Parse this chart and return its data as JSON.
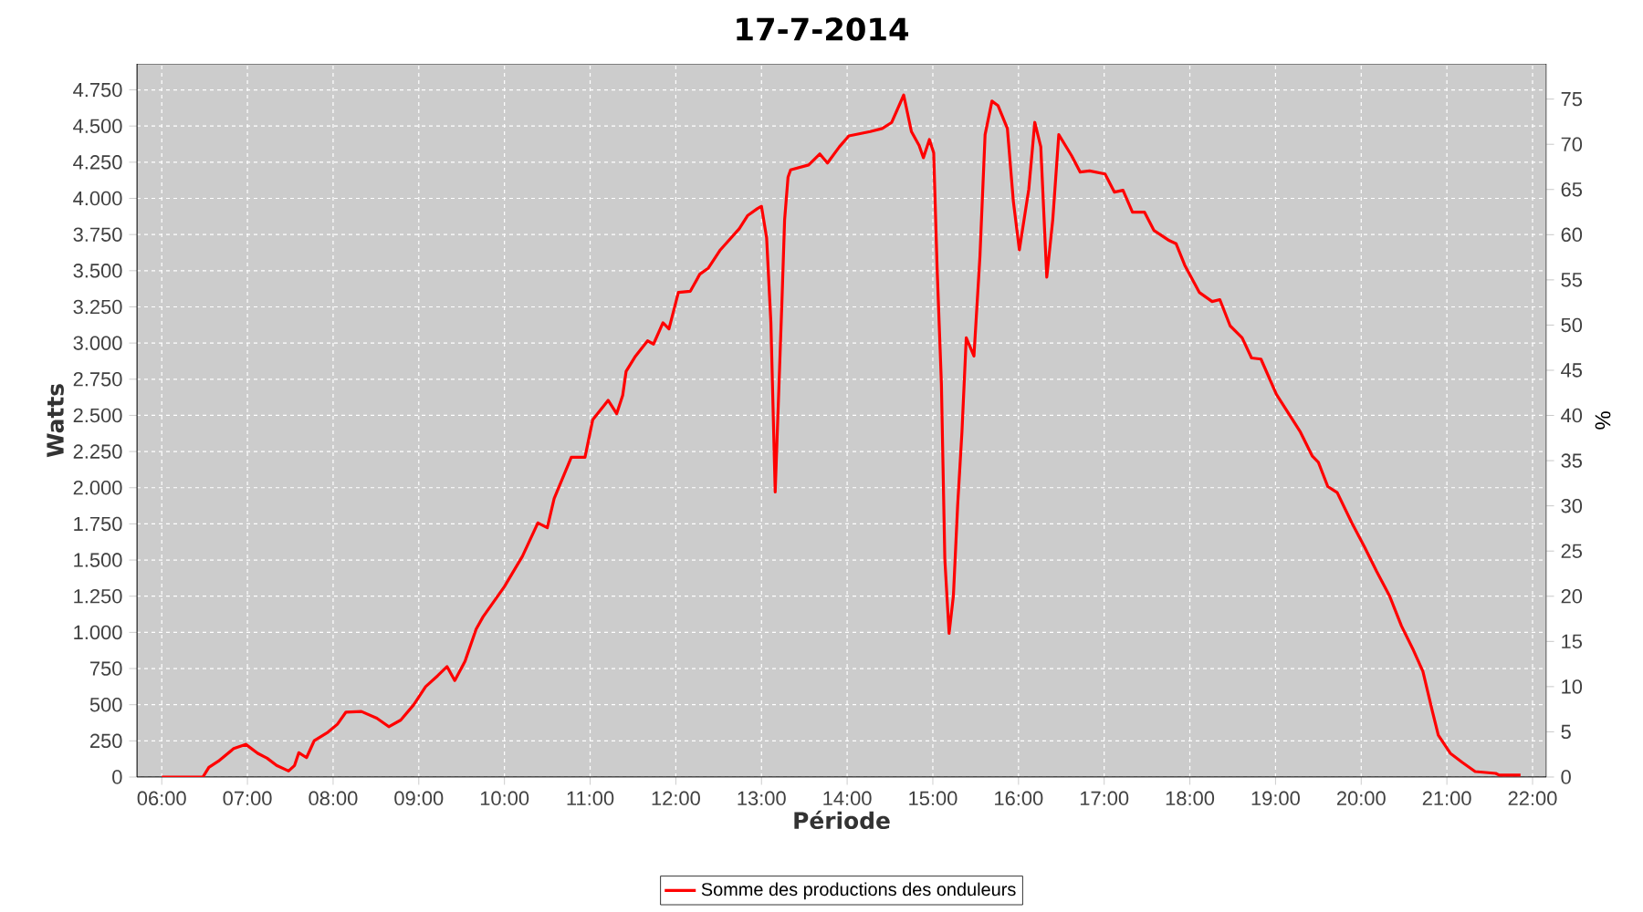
{
  "chart_data": {
    "type": "line",
    "title": "17-7-2014",
    "xlabel": "Période",
    "ylabel": "Watts",
    "y2label": "%",
    "x": [
      6.0,
      6.48,
      6.55,
      6.66,
      6.84,
      6.98,
      7.12,
      7.23,
      7.34,
      7.48,
      7.55,
      7.6,
      7.69,
      7.78,
      7.94,
      8.05,
      8.15,
      8.33,
      8.51,
      8.65,
      8.79,
      8.94,
      9.08,
      9.22,
      9.33,
      9.42,
      9.54,
      9.67,
      9.75,
      10.0,
      10.21,
      10.39,
      10.5,
      10.58,
      10.78,
      10.94,
      11.03,
      11.21,
      11.31,
      11.38,
      11.42,
      11.53,
      11.67,
      11.74,
      11.85,
      11.92,
      12.03,
      12.17,
      12.28,
      12.38,
      12.52,
      12.74,
      12.84,
      12.95,
      13.0,
      13.06,
      13.11,
      13.16,
      13.24,
      13.27,
      13.31,
      13.34,
      13.55,
      13.68,
      13.77,
      13.91,
      14.02,
      14.27,
      14.41,
      14.52,
      14.66,
      14.75,
      14.84,
      14.89,
      14.96,
      15.01,
      15.05,
      15.1,
      15.14,
      15.19,
      15.24,
      15.29,
      15.34,
      15.39,
      15.48,
      15.55,
      15.61,
      15.69,
      15.76,
      15.87,
      15.94,
      16.01,
      16.12,
      16.19,
      16.26,
      16.33,
      16.4,
      16.47,
      16.62,
      16.72,
      16.83,
      17.01,
      17.12,
      17.22,
      17.33,
      17.47,
      17.58,
      17.76,
      17.84,
      17.94,
      18.11,
      18.26,
      18.35,
      18.47,
      18.61,
      18.72,
      18.83,
      19.01,
      19.19,
      19.29,
      19.43,
      19.5,
      19.61,
      19.72,
      19.89,
      20.04,
      20.18,
      20.33,
      20.47,
      20.61,
      20.72,
      20.83,
      20.9,
      21.04,
      21.18,
      21.33,
      21.57,
      21.61,
      21.86
    ],
    "series": [
      {
        "name": "Somme des productions des onduleurs",
        "color": "#ff0000",
        "values": [
          0,
          0,
          67,
          109,
          197,
          226,
          164,
          130,
          80,
          42,
          80,
          168,
          134,
          252,
          310,
          365,
          449,
          453,
          407,
          348,
          394,
          499,
          625,
          700,
          763,
          667,
          801,
          1023,
          1107,
          1317,
          1526,
          1757,
          1723,
          1925,
          2210,
          2210,
          2469,
          2604,
          2512,
          2638,
          2805,
          2910,
          3015,
          2993,
          3140,
          3098,
          3350,
          3358,
          3476,
          3518,
          3644,
          3790,
          3882,
          3928,
          3945,
          3727,
          3140,
          1970,
          3308,
          3853,
          4147,
          4197,
          4231,
          4307,
          4244,
          4357,
          4432,
          4462,
          4483,
          4525,
          4714,
          4462,
          4366,
          4281,
          4407,
          4316,
          3517,
          2720,
          1505,
          993,
          1253,
          1881,
          2386,
          3036,
          2910,
          3601,
          4441,
          4672,
          4642,
          4483,
          3979,
          3644,
          4063,
          4525,
          4357,
          3455,
          3853,
          4441,
          4295,
          4182,
          4190,
          4169,
          4043,
          4056,
          3905,
          3905,
          3779,
          3708,
          3686,
          3539,
          3350,
          3287,
          3300,
          3119,
          3036,
          2897,
          2889,
          2646,
          2478,
          2385,
          2218,
          2176,
          2008,
          1966,
          1757,
          1589,
          1422,
          1253,
          1044,
          876,
          730,
          457,
          289,
          164,
          101,
          38,
          25,
          13,
          13
        ]
      }
    ],
    "xlim": [
      5.71,
      22.16
    ],
    "xticks": [
      {
        "value": 6,
        "label": "06:00"
      },
      {
        "value": 7,
        "label": "07:00"
      },
      {
        "value": 8,
        "label": "08:00"
      },
      {
        "value": 9,
        "label": "09:00"
      },
      {
        "value": 10,
        "label": "10:00"
      },
      {
        "value": 11,
        "label": "11:00"
      },
      {
        "value": 12,
        "label": "12:00"
      },
      {
        "value": 13,
        "label": "13:00"
      },
      {
        "value": 14,
        "label": "14:00"
      },
      {
        "value": 15,
        "label": "15:00"
      },
      {
        "value": 16,
        "label": "16:00"
      },
      {
        "value": 17,
        "label": "17:00"
      },
      {
        "value": 18,
        "label": "18:00"
      },
      {
        "value": 19,
        "label": "19:00"
      },
      {
        "value": 20,
        "label": "20:00"
      },
      {
        "value": 21,
        "label": "21:00"
      },
      {
        "value": 22,
        "label": "22:00"
      }
    ],
    "ylim": [
      0,
      4930
    ],
    "yticks": [
      0,
      250,
      500,
      750,
      {
        "value": 1000,
        "label": "1.000"
      },
      {
        "value": 1250,
        "label": "1.250"
      },
      {
        "value": 1500,
        "label": "1.500"
      },
      {
        "value": 1750,
        "label": "1.750"
      },
      {
        "value": 2000,
        "label": "2.000"
      },
      {
        "value": 2250,
        "label": "2.250"
      },
      {
        "value": 2500,
        "label": "2.500"
      },
      {
        "value": 2750,
        "label": "2.750"
      },
      {
        "value": 3000,
        "label": "3.000"
      },
      {
        "value": 3250,
        "label": "3.250"
      },
      {
        "value": 3500,
        "label": "3.500"
      },
      {
        "value": 3750,
        "label": "3.750"
      },
      {
        "value": 4000,
        "label": "4.000"
      },
      {
        "value": 4250,
        "label": "4.250"
      },
      {
        "value": 4500,
        "label": "4.500"
      },
      {
        "value": 4750,
        "label": "4.750"
      }
    ],
    "y2lim": [
      0,
      78.9
    ],
    "y2ticks": [
      0,
      5,
      10,
      15,
      20,
      25,
      30,
      35,
      40,
      45,
      50,
      55,
      60,
      65,
      70,
      75
    ],
    "grid": true,
    "legend": "bottom",
    "marker": "none",
    "line_style": "solid"
  }
}
